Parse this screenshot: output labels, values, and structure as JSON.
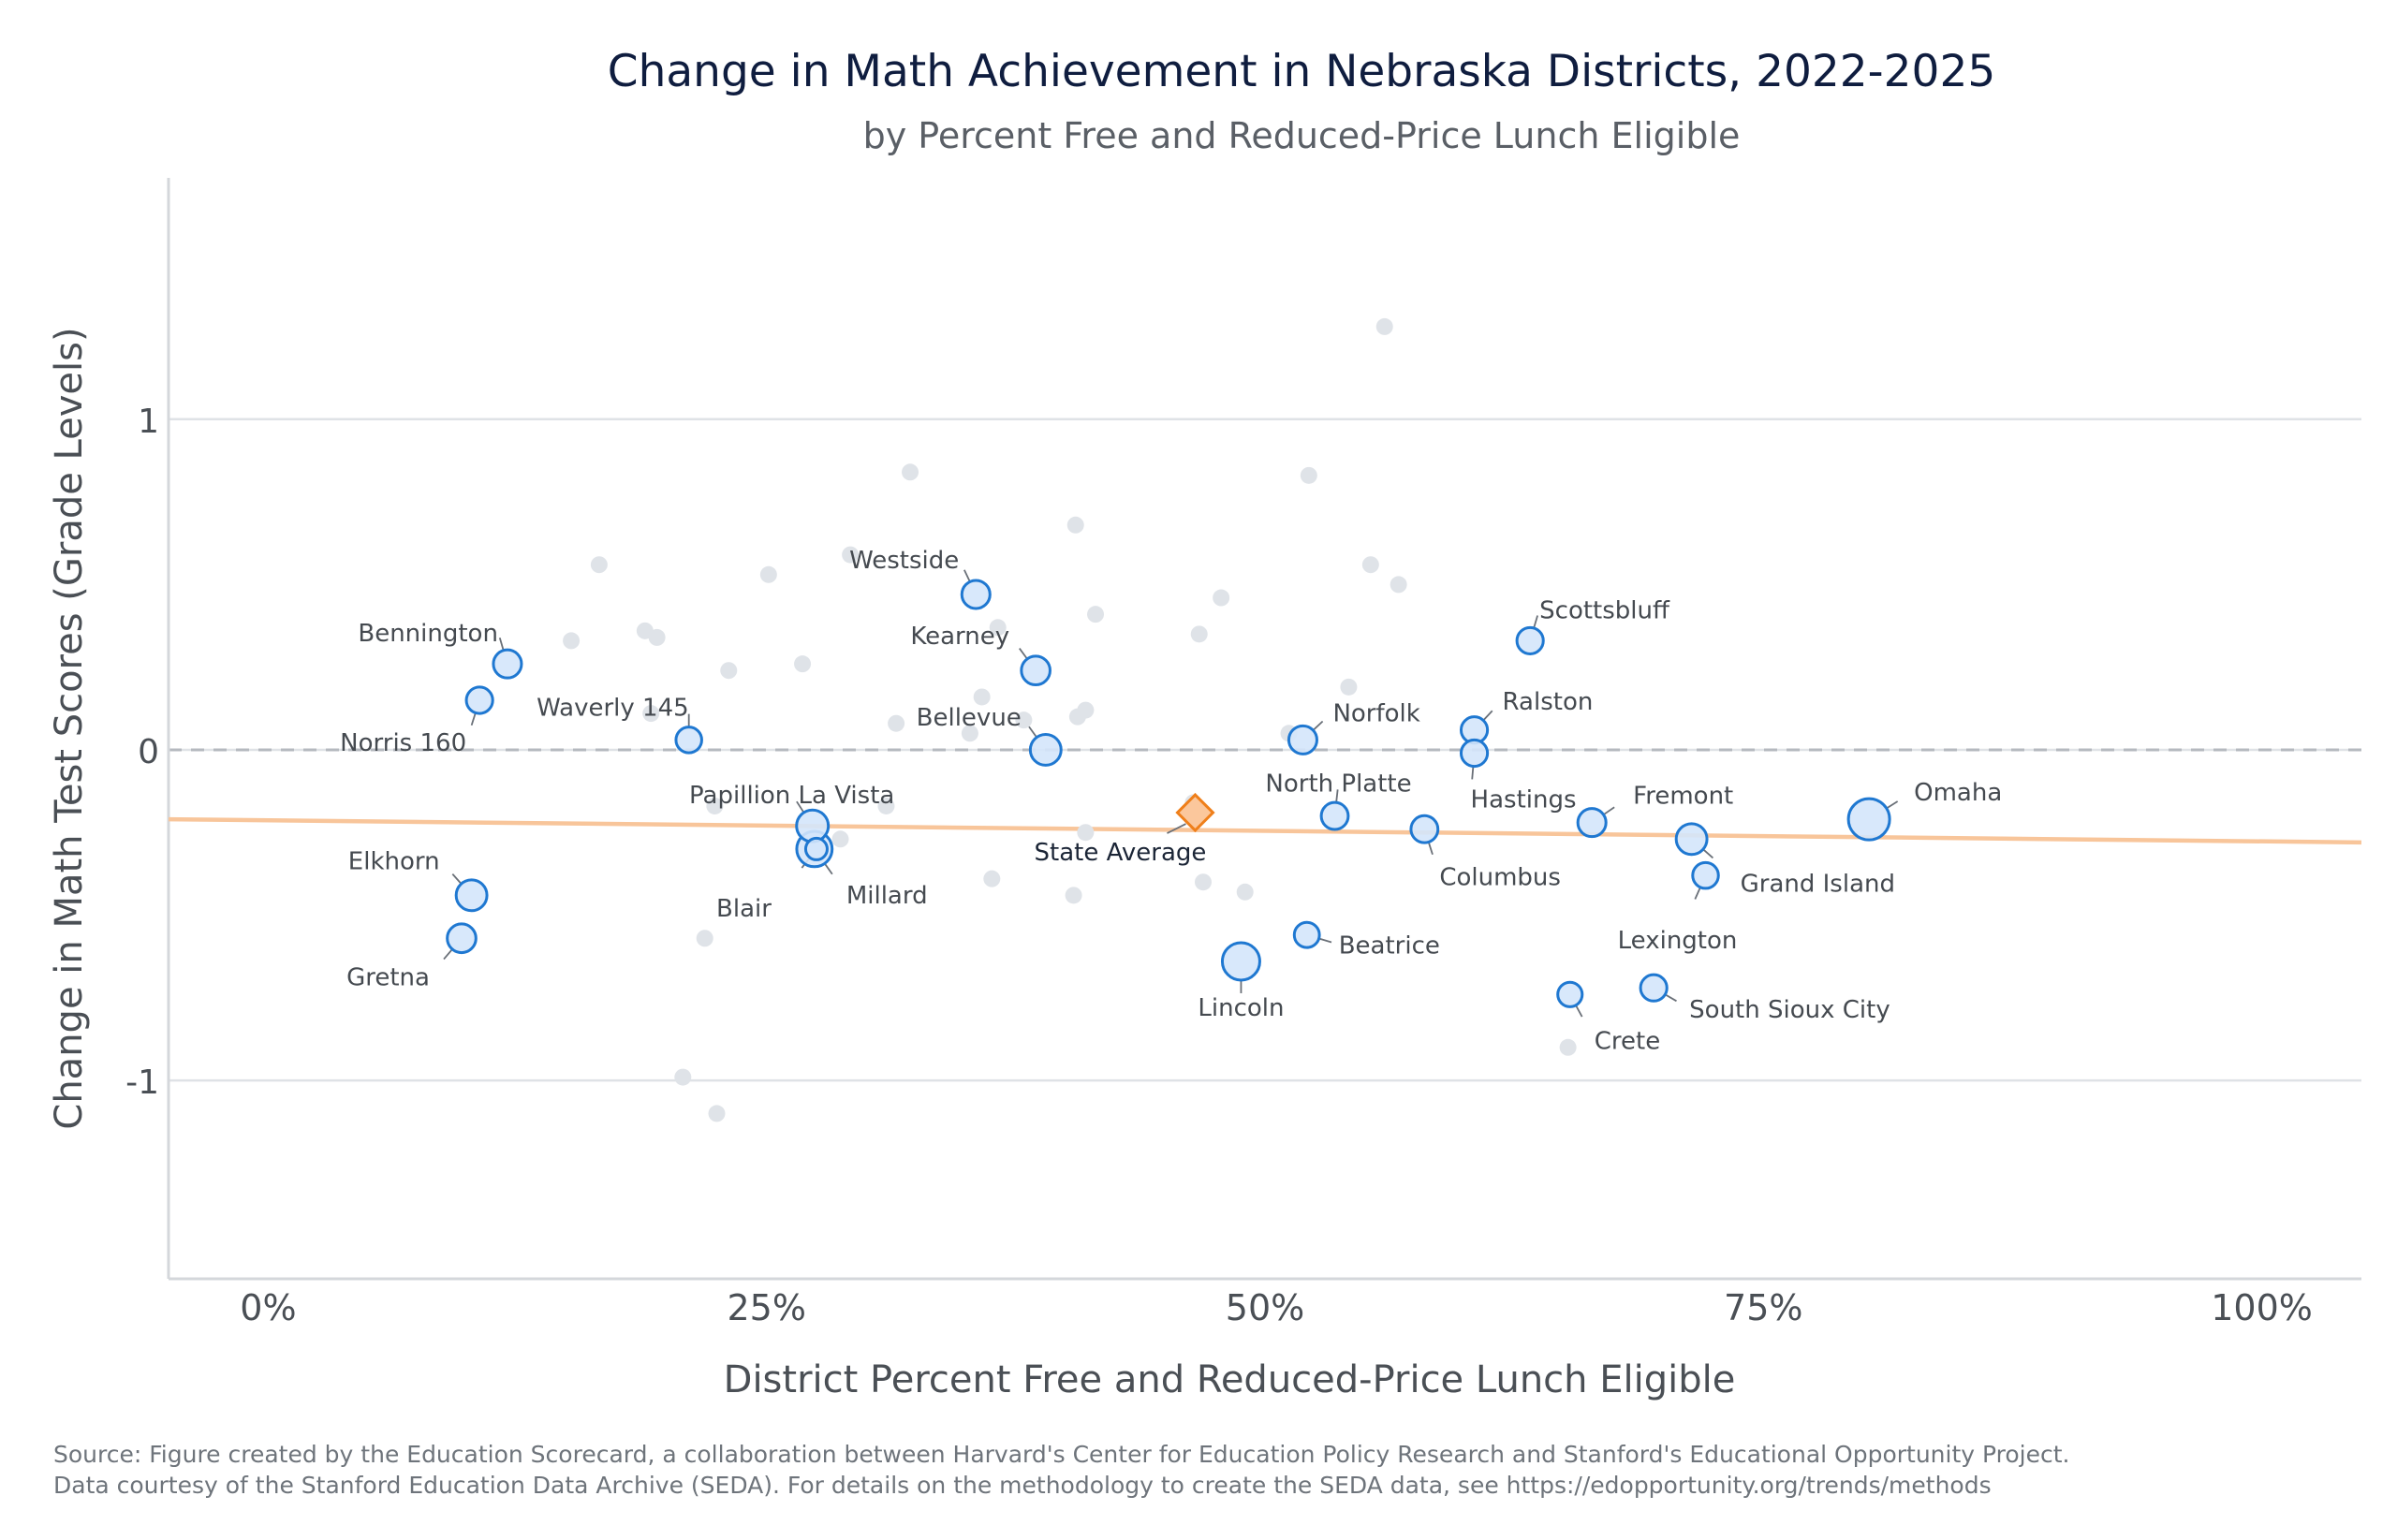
{
  "chart_data": {
    "type": "scatter",
    "title": "Change in Math Achievement in Nebraska Districts, 2022-2025",
    "subtitle": "by Percent Free and Reduced-Price Lunch Eligible",
    "xlabel": "District Percent Free and Reduced-Price Lunch Eligible",
    "ylabel": "Change in Math Test Scores (Grade Levels)",
    "xlim": [
      -5,
      105
    ],
    "ylim": [
      -1.6,
      1.73
    ],
    "x_ticks": [
      {
        "value": 0,
        "label": "0%"
      },
      {
        "value": 25,
        "label": "25%"
      },
      {
        "value": 50,
        "label": "50%"
      },
      {
        "value": 75,
        "label": "75%"
      },
      {
        "value": 100,
        "label": "100%"
      }
    ],
    "y_ticks": [
      {
        "value": 1,
        "label": "1"
      },
      {
        "value": 0,
        "label": "0"
      },
      {
        "value": -1,
        "label": "-1"
      }
    ],
    "grid": "horizontal",
    "reference_line_y": 0,
    "trend_line": {
      "x": [
        -5,
        105
      ],
      "y": [
        -0.21,
        -0.28
      ],
      "color": "#f8c59a"
    },
    "colors": {
      "labeled_fill": "#d4e6fb",
      "labeled_stroke": "#1f78d1",
      "other_fill": "#dfe3e8",
      "average_fill": "#fbc79c",
      "average_stroke": "#ef7f1a"
    },
    "state_average": {
      "label": "State Average",
      "x": 46.5,
      "y": -0.19
    },
    "labeled_districts": [
      {
        "name": "Omaha",
        "x": 80.3,
        "y": -0.21,
        "size": 5
      },
      {
        "name": "Lincoln",
        "x": 48.8,
        "y": -0.64,
        "size": 4
      },
      {
        "name": "Millard",
        "x": 27.4,
        "y": -0.3,
        "size": 3.5
      },
      {
        "name": "Papillion La Vista",
        "x": 27.3,
        "y": -0.23,
        "size": 2.7
      },
      {
        "name": "Elkhorn",
        "x": 10.2,
        "y": -0.44,
        "size": 2.5
      },
      {
        "name": "Gretna",
        "x": 9.7,
        "y": -0.57,
        "size": 2.1
      },
      {
        "name": "Bennington",
        "x": 12.0,
        "y": 0.26,
        "size": 2.0
      },
      {
        "name": "Norris 160",
        "x": 10.6,
        "y": 0.15,
        "size": 1.7
      },
      {
        "name": "Waverly 145",
        "x": 21.1,
        "y": 0.03,
        "size": 1.6
      },
      {
        "name": "Blair",
        "x": 27.5,
        "y": -0.3,
        "size": 1.0
      },
      {
        "name": "Westside",
        "x": 35.5,
        "y": 0.47,
        "size": 2.0
      },
      {
        "name": "Kearney",
        "x": 38.5,
        "y": 0.24,
        "size": 2.1
      },
      {
        "name": "Bellevue",
        "x": 39.0,
        "y": 0.0,
        "size": 2.5
      },
      {
        "name": "Norfolk",
        "x": 51.9,
        "y": 0.03,
        "size": 2.0
      },
      {
        "name": "North Platte",
        "x": 53.5,
        "y": -0.2,
        "size": 1.8
      },
      {
        "name": "Beatrice",
        "x": 52.1,
        "y": -0.56,
        "size": 1.5
      },
      {
        "name": "Columbus",
        "x": 58.0,
        "y": -0.24,
        "size": 1.8
      },
      {
        "name": "Scottsbluff",
        "x": 63.3,
        "y": 0.33,
        "size": 1.7
      },
      {
        "name": "Ralston",
        "x": 60.5,
        "y": 0.06,
        "size": 1.7
      },
      {
        "name": "Hastings",
        "x": 60.5,
        "y": -0.01,
        "size": 1.7
      },
      {
        "name": "Fremont",
        "x": 66.4,
        "y": -0.22,
        "size": 2.0
      },
      {
        "name": "Grand Island",
        "x": 71.4,
        "y": -0.27,
        "size": 2.5
      },
      {
        "name": "Lexington",
        "x": 72.1,
        "y": -0.38,
        "size": 1.6
      },
      {
        "name": "Crete",
        "x": 65.3,
        "y": -0.74,
        "size": 1.4
      },
      {
        "name": "South Sioux City",
        "x": 69.5,
        "y": -0.72,
        "size": 1.7
      }
    ],
    "other_districts": [
      {
        "x": 16.6,
        "y": 0.56
      },
      {
        "x": 15.2,
        "y": 0.33
      },
      {
        "x": 18.9,
        "y": 0.36
      },
      {
        "x": 19.5,
        "y": 0.34
      },
      {
        "x": 19.2,
        "y": 0.11
      },
      {
        "x": 23.1,
        "y": 0.24
      },
      {
        "x": 25.1,
        "y": 0.53
      },
      {
        "x": 26.8,
        "y": 0.26
      },
      {
        "x": 29.2,
        "y": 0.59
      },
      {
        "x": 32.2,
        "y": 0.84
      },
      {
        "x": 31.5,
        "y": 0.08
      },
      {
        "x": 31.0,
        "y": -0.17
      },
      {
        "x": 22.4,
        "y": -0.17
      },
      {
        "x": 28.7,
        "y": -0.27
      },
      {
        "x": 21.9,
        "y": -0.57
      },
      {
        "x": 20.8,
        "y": -0.99
      },
      {
        "x": 22.5,
        "y": -1.1
      },
      {
        "x": 35.2,
        "y": 0.05
      },
      {
        "x": 35.8,
        "y": 0.16
      },
      {
        "x": 36.6,
        "y": 0.37
      },
      {
        "x": 37.9,
        "y": 0.09
      },
      {
        "x": 36.3,
        "y": -0.39
      },
      {
        "x": 40.5,
        "y": 0.68
      },
      {
        "x": 41.5,
        "y": 0.41
      },
      {
        "x": 40.6,
        "y": 0.1
      },
      {
        "x": 41.0,
        "y": 0.12
      },
      {
        "x": 41.0,
        "y": -0.25
      },
      {
        "x": 40.4,
        "y": -0.44
      },
      {
        "x": 46.4,
        "y": -0.16
      },
      {
        "x": 46.9,
        "y": -0.4
      },
      {
        "x": 46.7,
        "y": 0.35
      },
      {
        "x": 47.8,
        "y": 0.46
      },
      {
        "x": 49.0,
        "y": -0.43
      },
      {
        "x": 51.2,
        "y": 0.05
      },
      {
        "x": 52.2,
        "y": 0.83
      },
      {
        "x": 54.2,
        "y": 0.19
      },
      {
        "x": 55.3,
        "y": 0.56
      },
      {
        "x": 56.0,
        "y": 1.28
      },
      {
        "x": 56.7,
        "y": 0.5
      },
      {
        "x": 65.2,
        "y": -0.9
      }
    ]
  },
  "source_line_1": "Source: Figure created by the Education Scorecard, a collaboration between Harvard's Center for Education Policy Research and Stanford's Educational Opportunity Project.",
  "source_line_2": "Data courtesy of the Stanford Education Data Archive (SEDA). For details on the methodology to create the SEDA data, see https://edopportunity.org/trends/methods"
}
